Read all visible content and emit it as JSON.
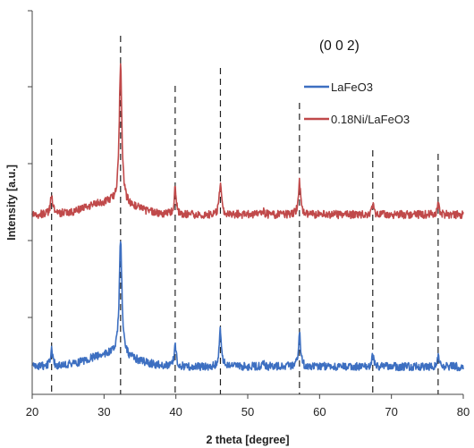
{
  "chart_data": {
    "type": "line",
    "xlabel": "2 theta [degree]",
    "ylabel": "Intensity [a.u.]",
    "xlim": [
      20,
      80
    ],
    "xticks": [
      20,
      30,
      40,
      50,
      60,
      70,
      80
    ],
    "y_tick_labels_shown": false,
    "annotation": "(0 0 2)",
    "legend": {
      "placement": "top-right"
    },
    "reference_lines": [
      22.7,
      32.3,
      39.9,
      46.2,
      57.2,
      67.4,
      76.5
    ],
    "series": [
      {
        "name": "LaFeO3",
        "color": "#3d6fc1",
        "baseline": 410,
        "noise": 4.5,
        "hump": {
          "center": 31,
          "width": 4.5,
          "height": 14
        },
        "peaks": [
          {
            "x": 22.7,
            "h": 20
          },
          {
            "x": 32.3,
            "h": 128
          },
          {
            "x": 39.9,
            "h": 24
          },
          {
            "x": 46.2,
            "h": 42
          },
          {
            "x": 52.1,
            "h": 5
          },
          {
            "x": 57.2,
            "h": 38
          },
          {
            "x": 67.4,
            "h": 12
          },
          {
            "x": 76.5,
            "h": 12
          }
        ]
      },
      {
        "name": "0.18Ni/LaFeO3",
        "color": "#c0494a",
        "baseline": 240,
        "noise": 4.5,
        "hump": {
          "center": 31,
          "width": 4.5,
          "height": 14
        },
        "peaks": [
          {
            "x": 22.7,
            "h": 22
          },
          {
            "x": 32.3,
            "h": 153
          },
          {
            "x": 39.9,
            "h": 28
          },
          {
            "x": 46.2,
            "h": 38
          },
          {
            "x": 52.1,
            "h": 5
          },
          {
            "x": 57.2,
            "h": 38
          },
          {
            "x": 67.4,
            "h": 12
          },
          {
            "x": 76.5,
            "h": 11
          }
        ]
      }
    ]
  }
}
